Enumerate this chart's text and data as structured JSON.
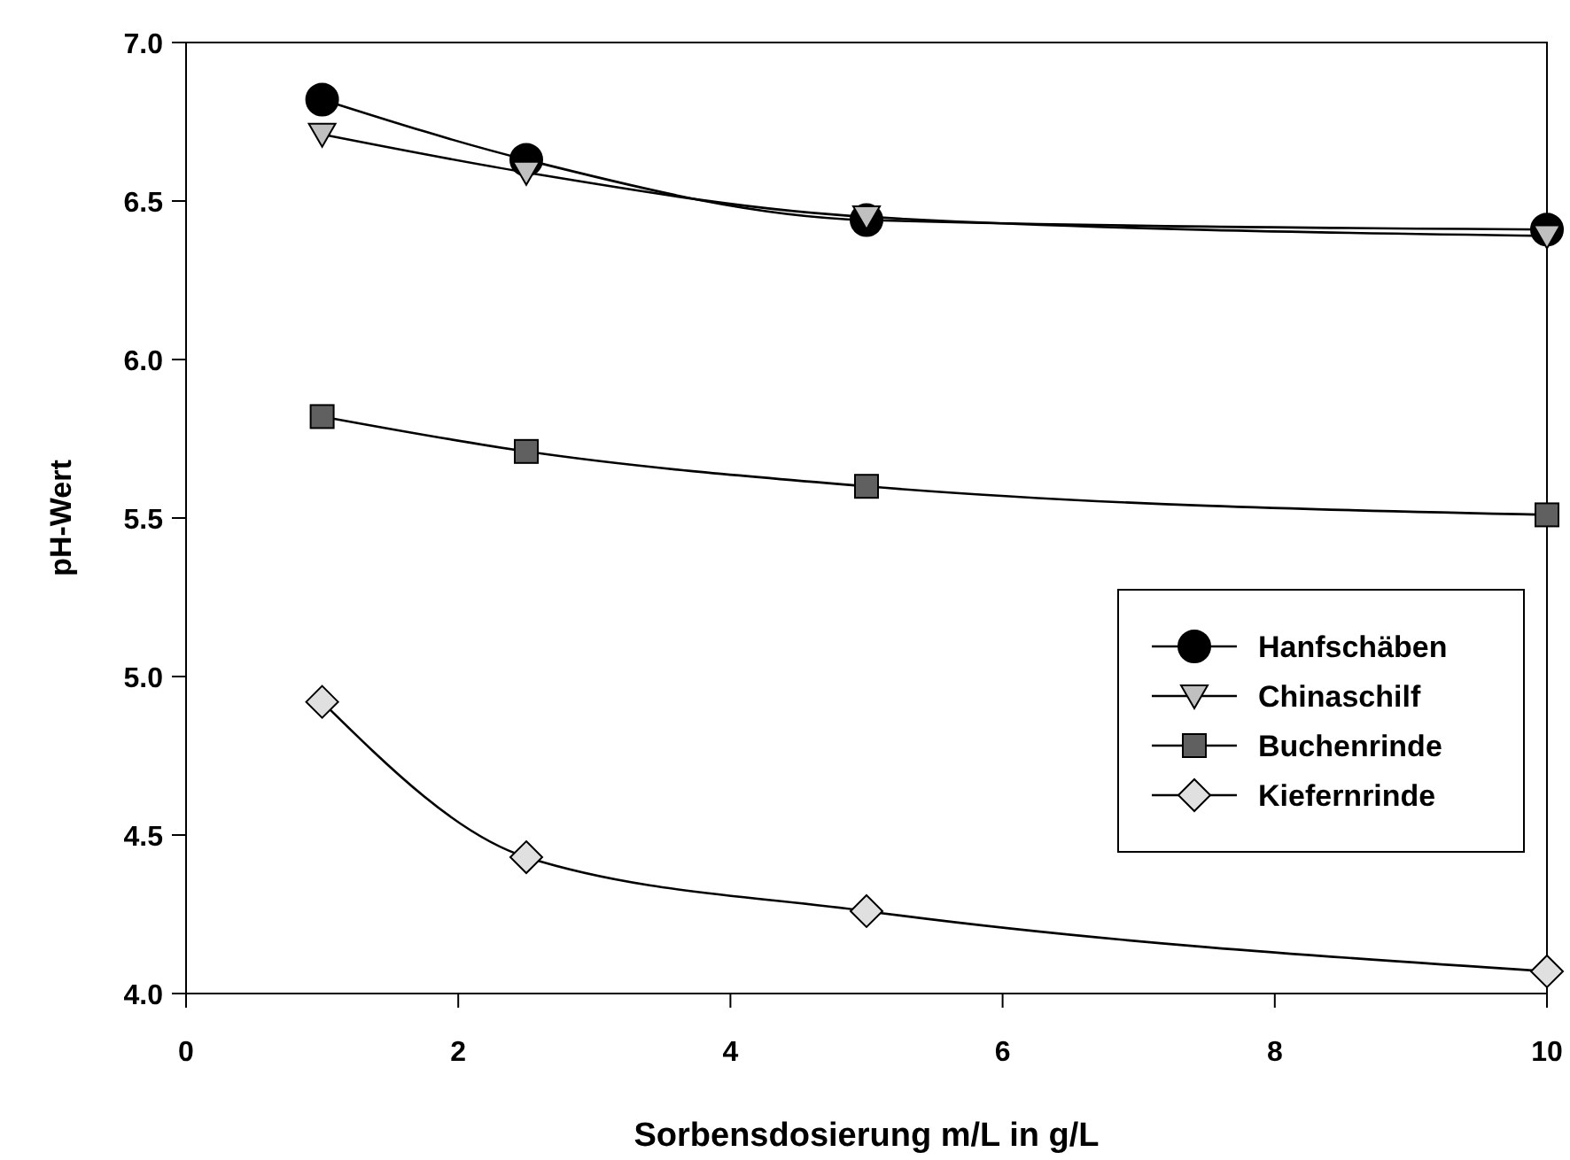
{
  "chart_data": {
    "type": "line",
    "xlabel": "Sorbensdosierung m/L in g/L",
    "ylabel": "pH-Wert",
    "x": [
      1,
      2.5,
      5,
      10
    ],
    "series": [
      {
        "name": "Hanfschäben",
        "color": "#000000",
        "marker": "circle",
        "values": [
          6.82,
          6.63,
          6.44,
          6.41
        ]
      },
      {
        "name": "Chinaschilf",
        "color": "#c0c0c0",
        "marker": "triangle",
        "values": [
          6.71,
          6.59,
          6.45,
          6.39
        ]
      },
      {
        "name": "Buchenrinde",
        "color": "#606060",
        "marker": "square",
        "values": [
          5.82,
          5.71,
          5.6,
          5.51
        ]
      },
      {
        "name": "Kiefernrinde",
        "color": "#e0e0e0",
        "marker": "diamond",
        "values": [
          4.92,
          4.43,
          4.26,
          4.07
        ]
      }
    ],
    "xlim": [
      0,
      10
    ],
    "xticks": [
      0,
      2,
      4,
      6,
      8,
      10
    ],
    "ylim": [
      4,
      7
    ],
    "yticks": [
      {
        "value": 4,
        "label": "4.0"
      },
      {
        "value": 4.5,
        "label": "4.5"
      },
      {
        "value": 5,
        "label": "5.0"
      },
      {
        "value": 5.5,
        "label": "5.5"
      },
      {
        "value": 6,
        "label": "6.0"
      },
      {
        "value": 6.5,
        "label": "6.5"
      },
      {
        "value": 7,
        "label": "7.0"
      }
    ],
    "grid": false,
    "legend": "right",
    "line_style": "solid"
  }
}
